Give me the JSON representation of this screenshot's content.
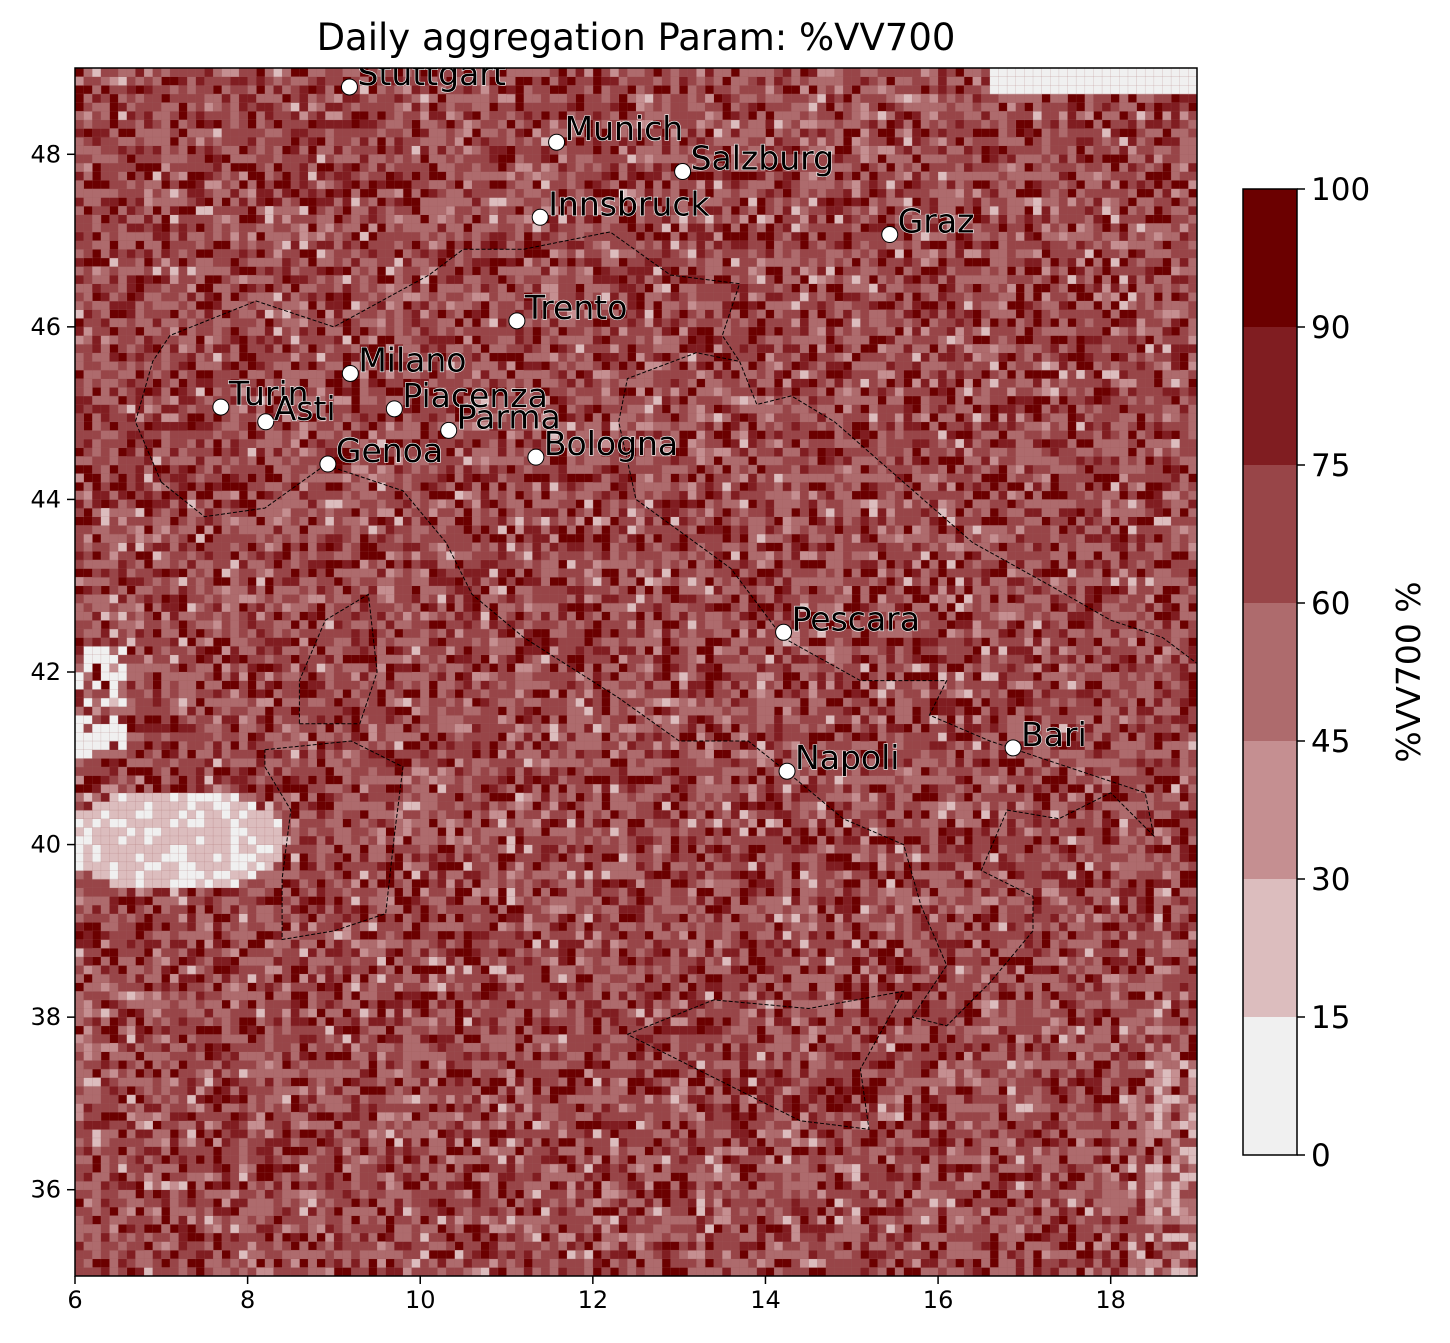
{
  "chart_data": {
    "type": "heatmap",
    "title": "Daily aggregation Param: %VV700",
    "xlim": [
      6,
      19
    ],
    "ylim": [
      35,
      49
    ],
    "x_ticks": [
      6,
      8,
      10,
      12,
      14,
      16,
      18
    ],
    "y_ticks": [
      36,
      38,
      40,
      42,
      44,
      46,
      48
    ],
    "x_tick_labels": [
      "6",
      "8",
      "10",
      "12",
      "14",
      "16",
      "18"
    ],
    "y_tick_labels": [
      "36",
      "38",
      "40",
      "42",
      "44",
      "46",
      "48"
    ],
    "colorbar": {
      "label": "%VV700  %",
      "levels": [
        0,
        15,
        30,
        45,
        60,
        75,
        90,
        100
      ],
      "tick_labels": [
        "0",
        "15",
        "30",
        "45",
        "60",
        "75",
        "90",
        "100"
      ],
      "colors": [
        "#f0f0f0",
        "#dcbdbe",
        "#c58f91",
        "#ae6b6d",
        "#984548",
        "#801d21",
        "#6b0000"
      ]
    },
    "grid_step_deg": 0.1,
    "field_description_levels": {
      "dominant": "75-100 over most of domain",
      "low_regions": "0-15 west of Sardinia near 40N 6-8E; lower values along northern and south-east edges"
    },
    "cities": [
      {
        "name": "Stuttgart",
        "lon": 9.18,
        "lat": 48.78
      },
      {
        "name": "Munich",
        "lon": 11.58,
        "lat": 48.14
      },
      {
        "name": "Salzburg",
        "lon": 13.04,
        "lat": 47.8
      },
      {
        "name": "Innsbruck",
        "lon": 11.39,
        "lat": 47.27
      },
      {
        "name": "Graz",
        "lon": 15.44,
        "lat": 47.07
      },
      {
        "name": "Trento",
        "lon": 11.12,
        "lat": 46.07
      },
      {
        "name": "Milano",
        "lon": 9.19,
        "lat": 45.46
      },
      {
        "name": "Turin",
        "lon": 7.69,
        "lat": 45.07
      },
      {
        "name": "Asti",
        "lon": 8.21,
        "lat": 44.9
      },
      {
        "name": "Piacenza",
        "lon": 9.7,
        "lat": 45.05
      },
      {
        "name": "Parma",
        "lon": 10.33,
        "lat": 44.8
      },
      {
        "name": "Genoa",
        "lon": 8.93,
        "lat": 44.41
      },
      {
        "name": "Bologna",
        "lon": 11.34,
        "lat": 44.49
      },
      {
        "name": "Pescara",
        "lon": 14.21,
        "lat": 42.46
      },
      {
        "name": "Bari",
        "lon": 16.87,
        "lat": 41.12
      },
      {
        "name": "Napoli",
        "lon": 14.25,
        "lat": 40.85
      }
    ]
  }
}
